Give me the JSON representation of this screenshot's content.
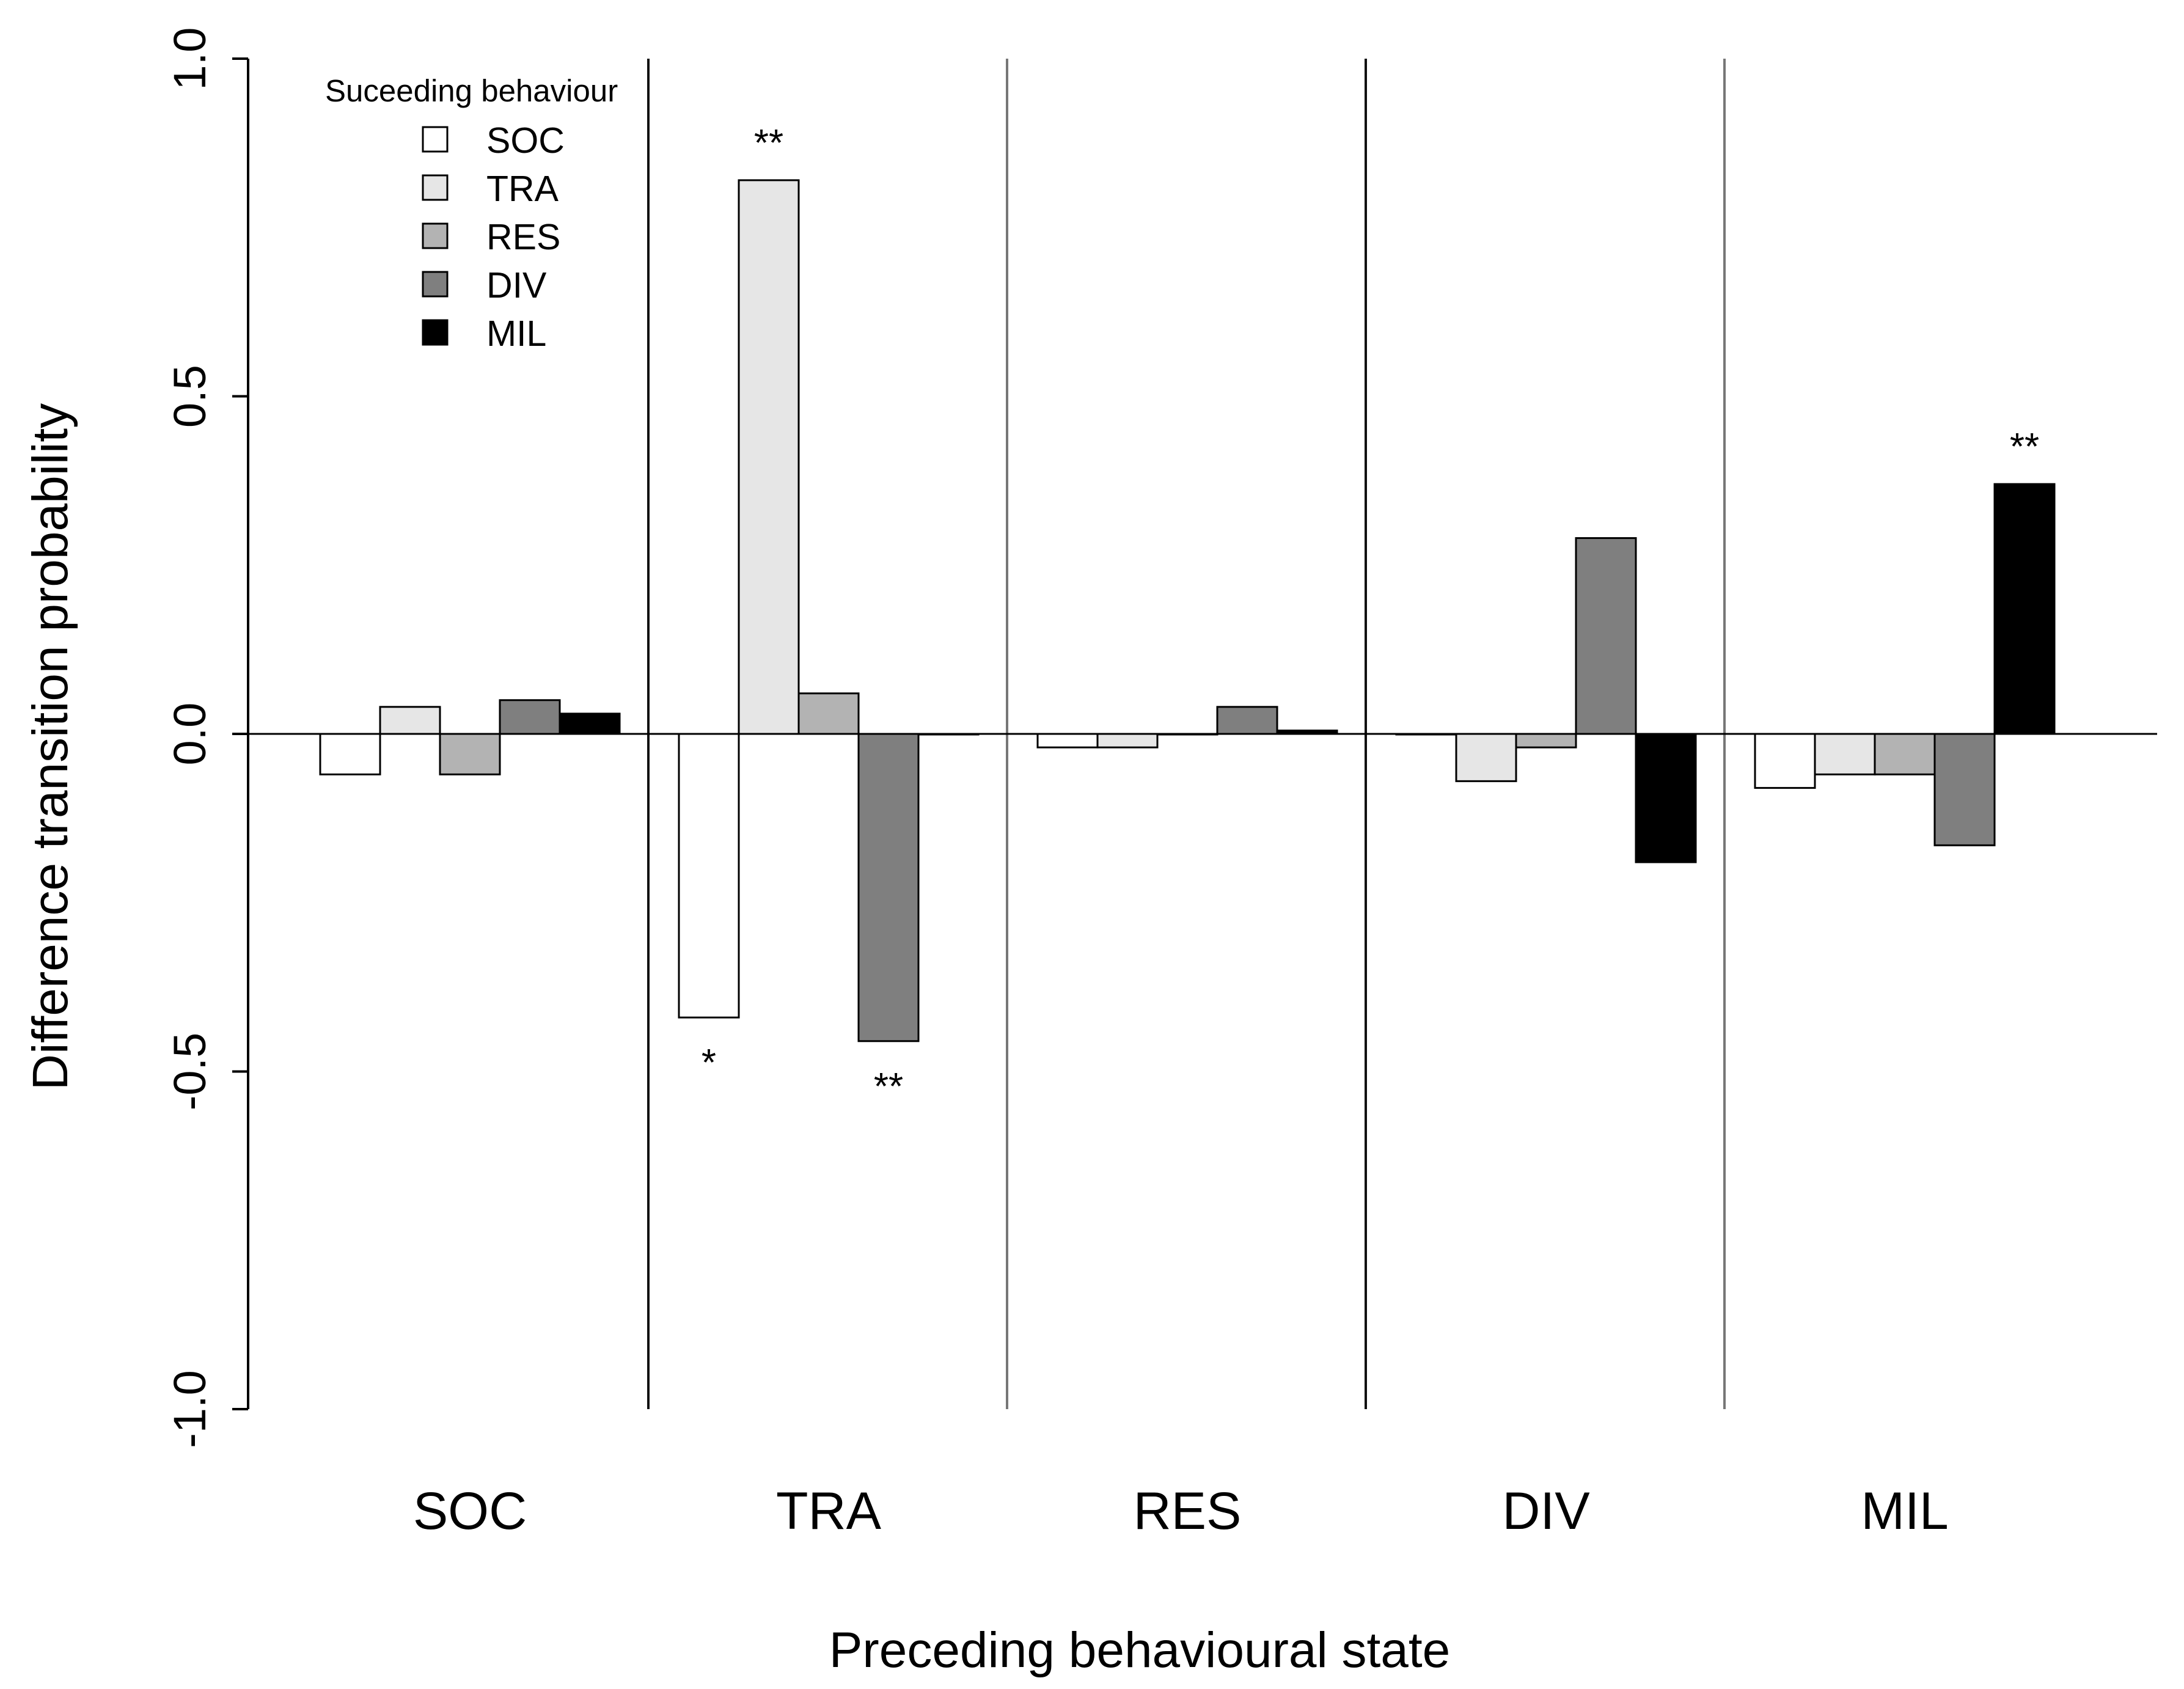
{
  "chart_data": {
    "type": "bar",
    "xlabel": "Preceding behavioural state",
    "ylabel": "Difference transition probability",
    "ylim": [
      -1.0,
      1.0
    ],
    "yticks": [
      "-1.0",
      "-0.5",
      "0.0",
      "0.5",
      "1.0"
    ],
    "ytick_values": [
      -1.0,
      -0.5,
      0.0,
      0.5,
      1.0
    ],
    "categories": [
      "SOC",
      "TRA",
      "RES",
      "DIV",
      "MIL"
    ],
    "legend": {
      "title": "Suceeding behaviour",
      "position": "top-left"
    },
    "grid": false,
    "series": [
      {
        "name": "SOC",
        "color": "#ffffff",
        "values": [
          -0.06,
          -0.42,
          -0.02,
          0.0,
          -0.08
        ]
      },
      {
        "name": "TRA",
        "color": "#e6e6e6",
        "values": [
          0.04,
          0.82,
          -0.02,
          -0.07,
          -0.06
        ]
      },
      {
        "name": "RES",
        "color": "#b3b3b3",
        "values": [
          -0.06,
          0.06,
          0.0,
          -0.02,
          -0.06
        ]
      },
      {
        "name": "DIV",
        "color": "#7f7f7f",
        "values": [
          0.05,
          -0.455,
          0.04,
          0.29,
          -0.165
        ]
      },
      {
        "name": "MIL",
        "color": "#000000",
        "values": [
          0.03,
          0.0,
          0.005,
          -0.19,
          0.37
        ]
      }
    ],
    "annotations": [
      {
        "text": "**",
        "category": "TRA",
        "series": "TRA"
      },
      {
        "text": "*",
        "category": "TRA",
        "series": "SOC"
      },
      {
        "text": "**",
        "category": "TRA",
        "series": "DIV"
      },
      {
        "text": "**",
        "category": "MIL",
        "series": "MIL"
      }
    ]
  }
}
